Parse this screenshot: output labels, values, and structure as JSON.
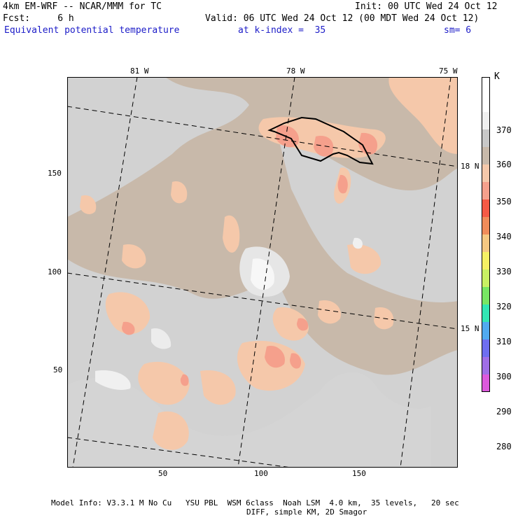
{
  "header": {
    "model": "4km EM-WRF -- NCAR/MMM for TC",
    "init": "Init: 00 UTC Wed 24 Oct 12",
    "fcst": "Fcst:     6 h",
    "valid": "Valid: 06 UTC Wed 24 Oct 12 (00 MDT Wed 24 Oct 12)",
    "field": "Equivalent potential temperature",
    "level": "at k-index =  35",
    "smooth": "sm= 6"
  },
  "map": {
    "lon_labels": [
      "81 W",
      "78 W",
      "75 W"
    ],
    "lat_labels": [
      "18 N",
      "15 N"
    ],
    "x_ticks": [
      "50",
      "100",
      "150"
    ],
    "y_ticks": [
      "150",
      "100",
      "50"
    ]
  },
  "colorbar": {
    "unit": "K",
    "colors": [
      "#ffffff",
      "#ffffff",
      "#f0f0f0",
      "#c8c8c8",
      "#c8b9aa",
      "#f5c8aa",
      "#f5a08c",
      "#f55a46",
      "#f08c5a",
      "#f5c882",
      "#f5f064",
      "#c8f064",
      "#78e664",
      "#32e6b4",
      "#50aaf0",
      "#6e6ef0",
      "#a06ee6",
      "#dc5adc"
    ],
    "labels": [
      "370",
      "360",
      "350",
      "340",
      "330",
      "320",
      "310",
      "300",
      "290",
      "280"
    ]
  },
  "footer": {
    "line1": "Model Info: V3.3.1 M No Cu   YSU PBL  WSM 6class  Noah LSM  4.0 km,  35 levels,   20 sec",
    "line2": "DIFF, simple KM, 2D Smagor"
  }
}
